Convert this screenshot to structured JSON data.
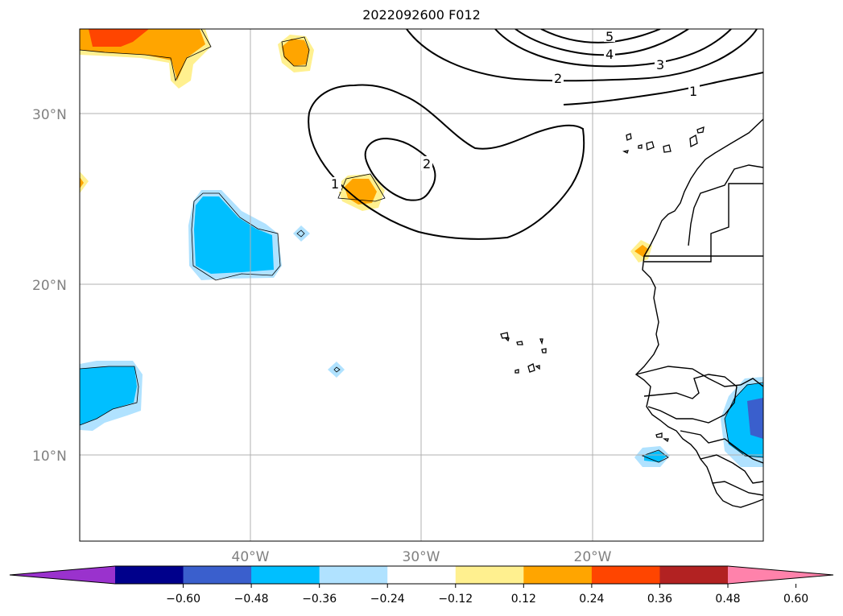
{
  "title": "2022092600 F012",
  "map": {
    "lat_labels": [
      "30°N",
      "20°N",
      "10°N"
    ],
    "lon_labels": [
      "40°W",
      "30°W",
      "20°W"
    ],
    "contour_labels": [
      "5",
      "4",
      "3",
      "2",
      "1",
      "2",
      "1"
    ],
    "grid": true
  },
  "colorbar": {
    "colors": [
      "#9a32cd",
      "#00008b",
      "#3a5fcd",
      "#00bfff",
      "#b0e2ff",
      "#ffffff",
      "#fff08f",
      "#ffa500",
      "#ff4500",
      "#b22222",
      "#ff82ab"
    ],
    "tick_labels": [
      "−0.60",
      "−0.48",
      "−0.36",
      "−0.24",
      "−0.12",
      "0.12",
      "0.24",
      "0.36",
      "0.48",
      "0.60"
    ],
    "extend": "both"
  }
}
